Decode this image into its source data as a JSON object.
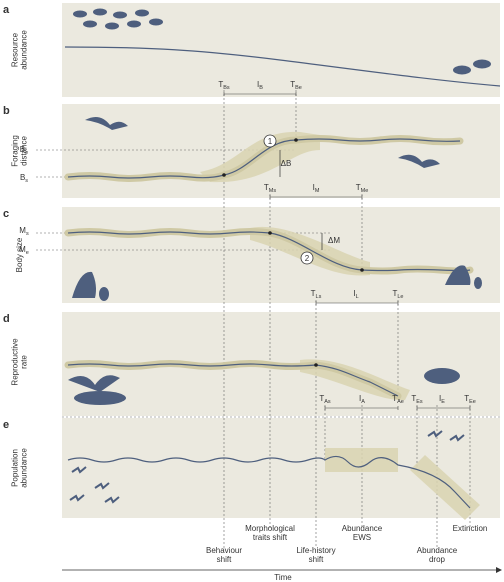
{
  "panels": [
    {
      "letter": "a",
      "ylabel": [
        "Resource",
        "abundance"
      ],
      "labels": [
        {
          "main": "T",
          "sub": "Bs"
        },
        {
          "main": "I",
          "sub": "B"
        },
        {
          "main": "T",
          "sub": "Be"
        }
      ]
    },
    {
      "letter": "b",
      "ylabel": [
        "Foraging",
        "distance"
      ],
      "labels": [
        {
          "main": "B",
          "sub": "e"
        },
        {
          "main": "B",
          "sub": "s"
        },
        {
          "main": "ΔB"
        },
        {
          "main": "1"
        },
        {
          "main": "T",
          "sub": "Ms"
        },
        {
          "main": "I",
          "sub": "M"
        },
        {
          "main": "T",
          "sub": "Me"
        }
      ]
    },
    {
      "letter": "c",
      "ylabel": [
        "Body size"
      ],
      "labels": [
        {
          "main": "M",
          "sub": "s"
        },
        {
          "main": "M",
          "sub": "e"
        },
        {
          "main": "ΔM"
        },
        {
          "main": "2"
        },
        {
          "main": "T",
          "sub": "Ls"
        },
        {
          "main": "I",
          "sub": "L"
        },
        {
          "main": "T",
          "sub": "Le"
        }
      ]
    },
    {
      "letter": "d",
      "ylabel": [
        "Reproductive",
        "rate"
      ],
      "labels": [
        {
          "main": "T",
          "sub": "As"
        },
        {
          "main": "I",
          "sub": "A"
        },
        {
          "main": "T",
          "sub": "Ae"
        },
        {
          "main": "T",
          "sub": "Es"
        },
        {
          "main": "I",
          "sub": "E"
        },
        {
          "main": "T",
          "sub": "Ee"
        }
      ]
    },
    {
      "letter": "e",
      "ylabel": [
        "Population",
        "abundance"
      ],
      "labels": []
    }
  ],
  "events": [
    [
      "Behaviour",
      "shift"
    ],
    [
      "Morphological",
      "traits shift"
    ],
    [
      "Life-history",
      "shift"
    ],
    [
      "Abundance",
      "EWS"
    ],
    [
      "Abundance",
      "drop"
    ],
    [
      "Extinction"
    ]
  ],
  "time_label": "Time"
}
